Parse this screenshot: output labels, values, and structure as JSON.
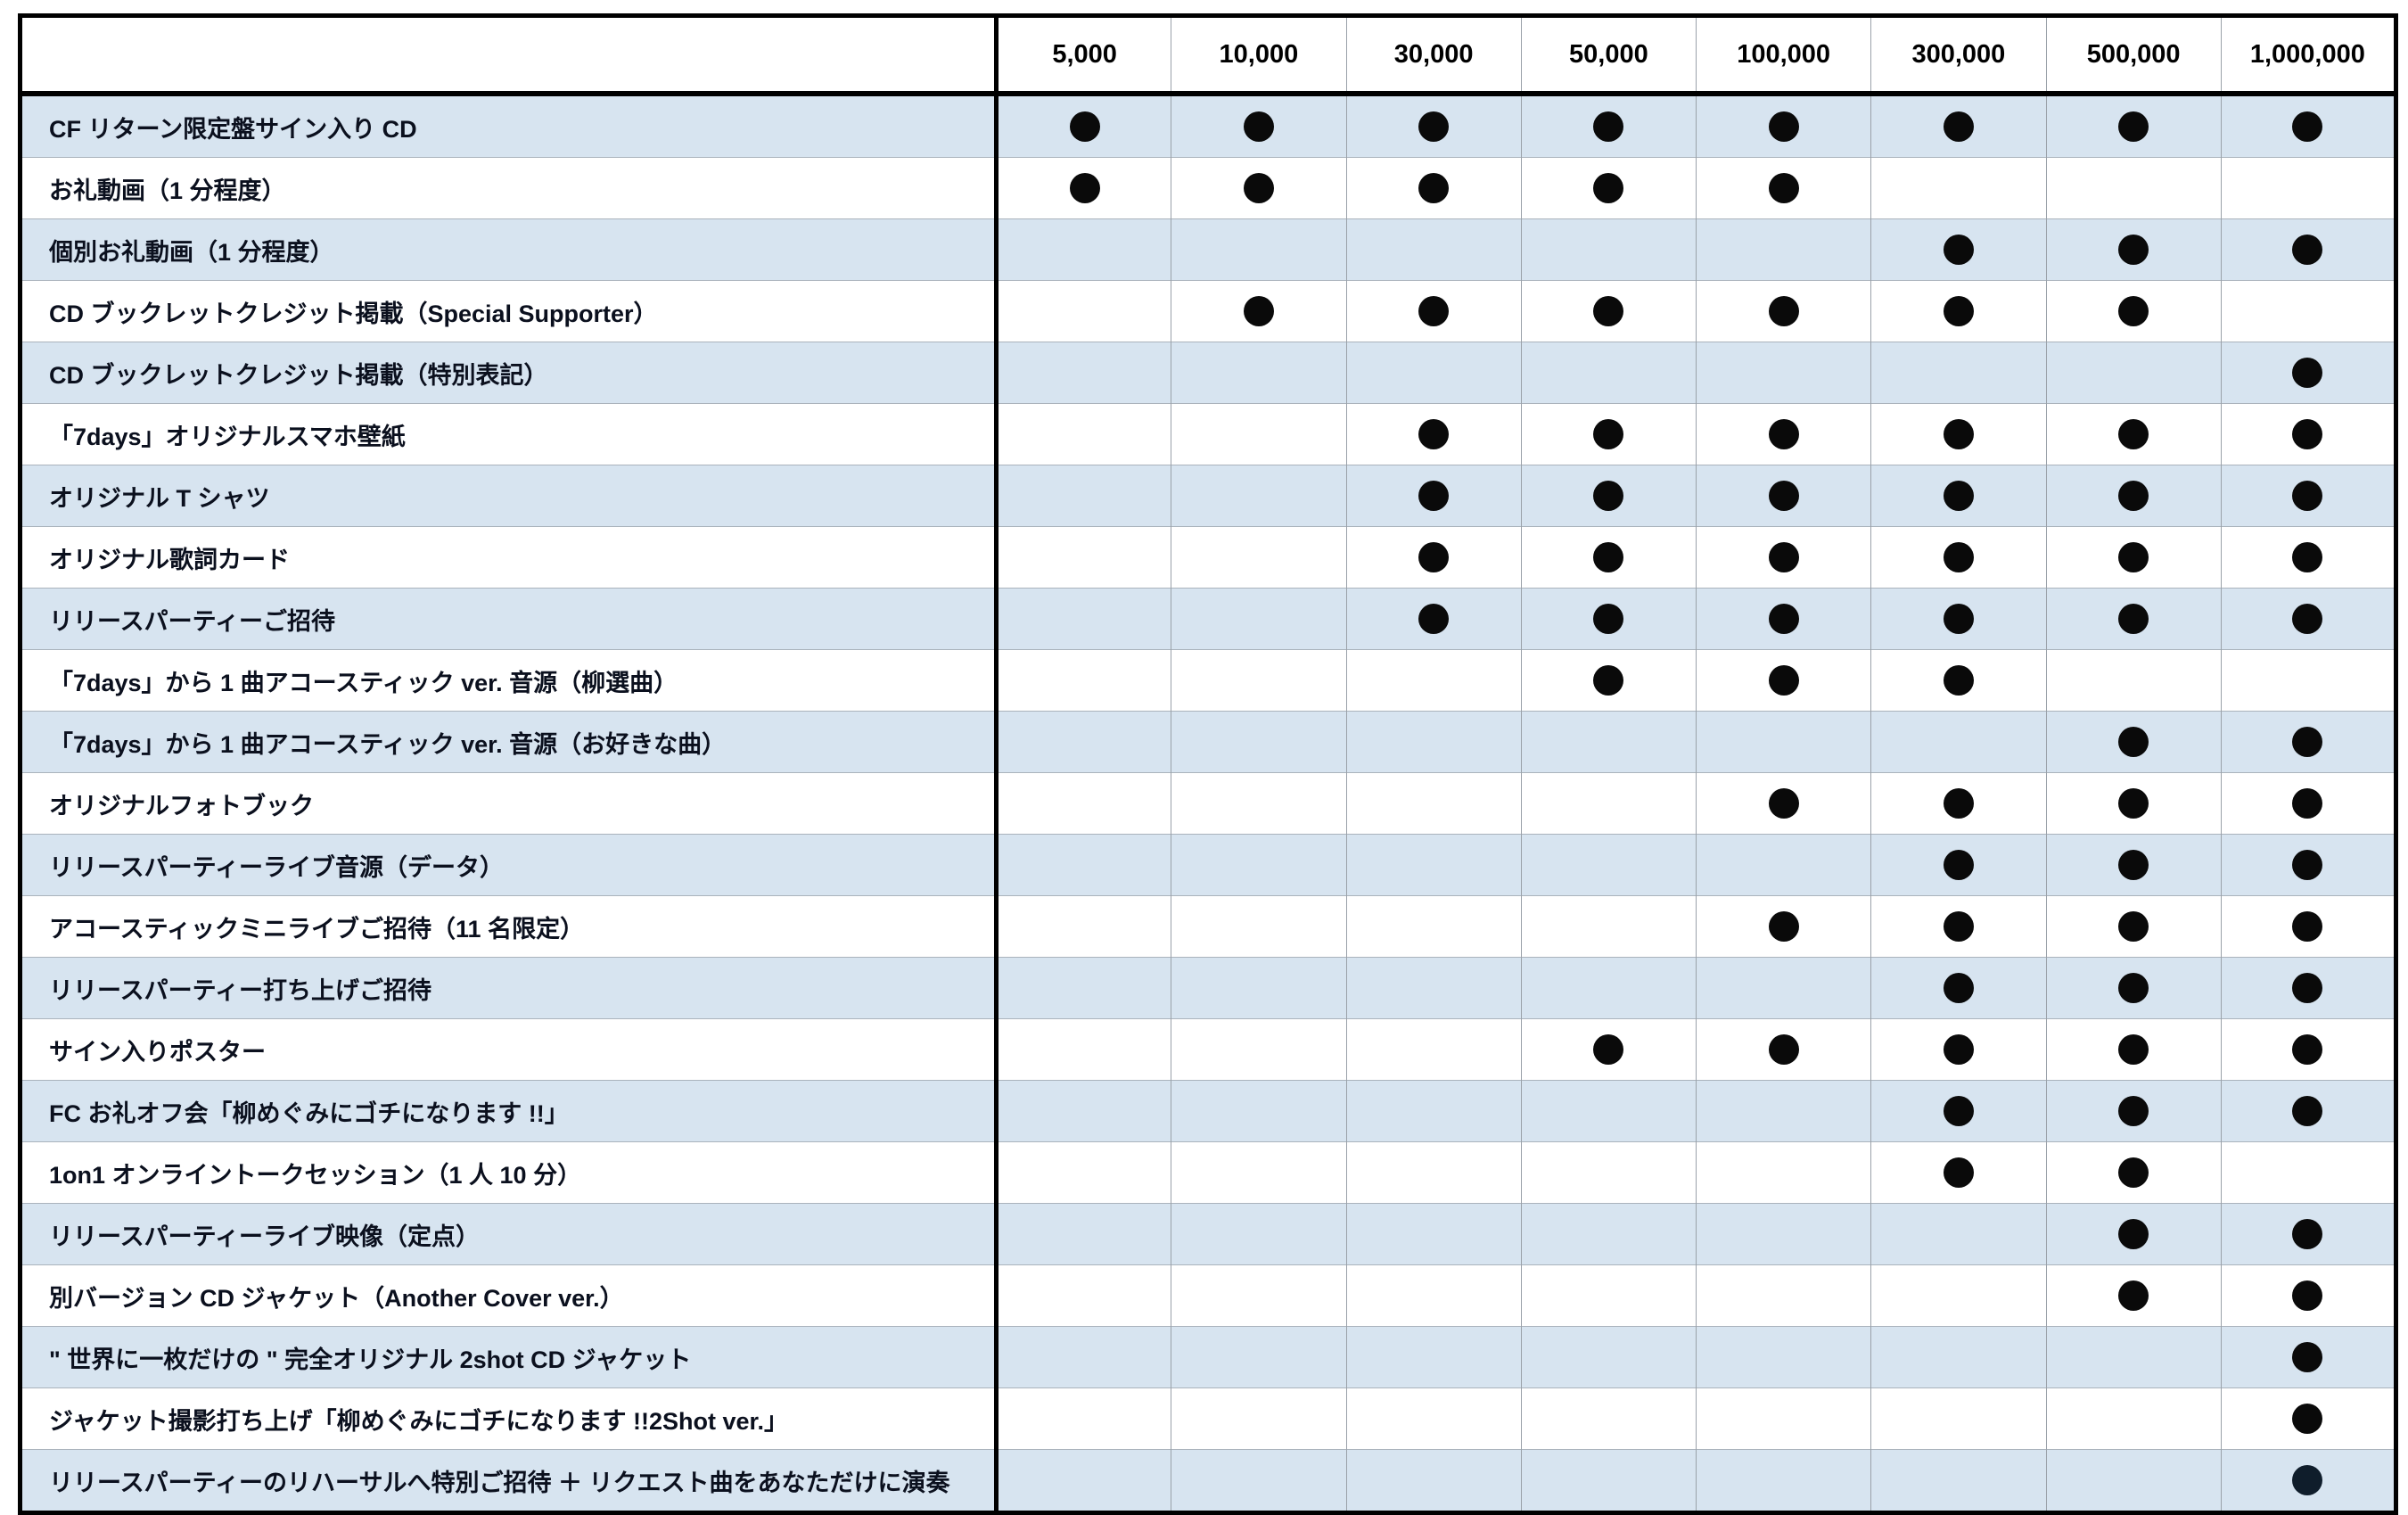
{
  "chart_data": {
    "type": "table",
    "title": "",
    "corner_label": "",
    "categories": [
      "5,000",
      "10,000",
      "30,000",
      "50,000",
      "100,000",
      "300,000",
      "500,000",
      "1,000,000"
    ],
    "rows": [
      {
        "label": "CF リターン限定盤サイン入り CD",
        "tiers": [
          1,
          1,
          1,
          1,
          1,
          1,
          1,
          1
        ]
      },
      {
        "label": "お礼動画（1 分程度）",
        "tiers": [
          1,
          1,
          1,
          1,
          1,
          0,
          0,
          0
        ]
      },
      {
        "label": "個別お礼動画（1 分程度）",
        "tiers": [
          0,
          0,
          0,
          0,
          0,
          1,
          1,
          1
        ]
      },
      {
        "label": "CD ブックレットクレジット掲載（Special Supporter）",
        "tiers": [
          0,
          1,
          1,
          1,
          1,
          1,
          1,
          0
        ]
      },
      {
        "label": "CD ブックレットクレジット掲載（特別表記）",
        "tiers": [
          0,
          0,
          0,
          0,
          0,
          0,
          0,
          1
        ]
      },
      {
        "label": "「7days」オリジナルスマホ壁紙",
        "tiers": [
          0,
          0,
          1,
          1,
          1,
          1,
          1,
          1
        ]
      },
      {
        "label": "オリジナル T シャツ",
        "tiers": [
          0,
          0,
          1,
          1,
          1,
          1,
          1,
          1
        ]
      },
      {
        "label": "オリジナル歌詞カード",
        "tiers": [
          0,
          0,
          1,
          1,
          1,
          1,
          1,
          1
        ]
      },
      {
        "label": "リリースパーティーご招待",
        "tiers": [
          0,
          0,
          1,
          1,
          1,
          1,
          1,
          1
        ]
      },
      {
        "label": "「7days」から 1 曲アコースティック ver. 音源（柳選曲）",
        "tiers": [
          0,
          0,
          0,
          1,
          1,
          1,
          0,
          0
        ]
      },
      {
        "label": "「7days」から 1 曲アコースティック ver. 音源（お好きな曲）",
        "tiers": [
          0,
          0,
          0,
          0,
          0,
          0,
          1,
          1
        ]
      },
      {
        "label": "オリジナルフォトブック",
        "tiers": [
          0,
          0,
          0,
          0,
          1,
          1,
          1,
          1
        ]
      },
      {
        "label": "リリースパーティーライブ音源（データ）",
        "tiers": [
          0,
          0,
          0,
          0,
          0,
          1,
          1,
          1
        ]
      },
      {
        "label": "アコースティックミニライブご招待（11 名限定）",
        "tiers": [
          0,
          0,
          0,
          0,
          1,
          1,
          1,
          1
        ]
      },
      {
        "label": "リリースパーティー打ち上げご招待",
        "tiers": [
          0,
          0,
          0,
          0,
          0,
          1,
          1,
          1
        ]
      },
      {
        "label": "サイン入りポスター",
        "tiers": [
          0,
          0,
          0,
          1,
          1,
          1,
          1,
          1
        ]
      },
      {
        "label": "FC お礼オフ会「柳めぐみにゴチになります !!」",
        "tiers": [
          0,
          0,
          0,
          0,
          0,
          1,
          1,
          1
        ]
      },
      {
        "label": "1on1 オンライントークセッション（1 人 10 分）",
        "tiers": [
          0,
          0,
          0,
          0,
          0,
          1,
          1,
          0
        ]
      },
      {
        "label": "リリースパーティーライブ映像（定点）",
        "tiers": [
          0,
          0,
          0,
          0,
          0,
          0,
          1,
          1
        ]
      },
      {
        "label": "別バージョン CD ジャケット（Another Cover ver.）",
        "tiers": [
          0,
          0,
          0,
          0,
          0,
          0,
          1,
          1
        ]
      },
      {
        "label": "\" 世界に一枚だけの \" 完全オリジナル 2shot CD ジャケット",
        "tiers": [
          0,
          0,
          0,
          0,
          0,
          0,
          0,
          1
        ]
      },
      {
        "label": "ジャケット撮影打ち上げ「柳めぐみにゴチになります !!2Shot ver.」",
        "tiers": [
          0,
          0,
          0,
          0,
          0,
          0,
          0,
          1
        ]
      },
      {
        "label": "リリースパーティーのリハーサルへ特別ご招待 ＋ リクエスト曲をあなただけに演奏",
        "tiers": [
          0,
          0,
          0,
          0,
          0,
          0,
          0,
          1
        ],
        "dot_style": "navy"
      }
    ],
    "legend": {
      "dot_means": "included"
    },
    "layout": {
      "grid": true,
      "striped_rows": "odd",
      "label_column_align": "left",
      "tier_column_align": "center"
    }
  },
  "colors": {
    "stripe": "#d7e4f0",
    "dot": "#0a0a0a",
    "dot_navy": "#0f1d2b",
    "grid_line": "#9aa1a9",
    "row_line": "#aab3bc",
    "border": "#000000",
    "label_text": "#0b101e",
    "header_text": "#000000"
  }
}
